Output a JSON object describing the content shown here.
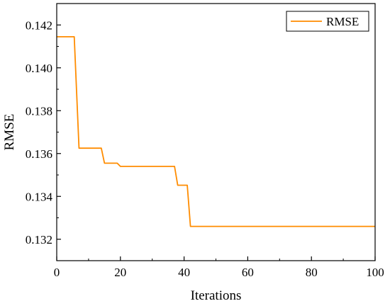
{
  "chart_data": {
    "type": "line",
    "title": "",
    "xlabel": "Iterations",
    "ylabel": "RMSE",
    "xlim": [
      0,
      100
    ],
    "ylim": [
      0.131,
      0.143
    ],
    "xticks": [
      0,
      20,
      40,
      60,
      80,
      100
    ],
    "xtick_labels": [
      "0",
      "20",
      "40",
      "60",
      "80",
      "100"
    ],
    "yticks": [
      0.132,
      0.134,
      0.136,
      0.138,
      0.14,
      0.142
    ],
    "ytick_labels": [
      "0.132",
      "0.134",
      "0.136",
      "0.138",
      "0.140",
      "0.142"
    ],
    "grid": false,
    "legend_position": "top-right",
    "series": [
      {
        "name": "RMSE",
        "color": "#ff8c00",
        "x": [
          0,
          5.5,
          7,
          14,
          15,
          19,
          20,
          37,
          38,
          41,
          42,
          100
        ],
        "y": [
          0.14145,
          0.14145,
          0.13625,
          0.13625,
          0.13555,
          0.13555,
          0.1354,
          0.1354,
          0.13452,
          0.13452,
          0.1326,
          0.1326
        ]
      }
    ]
  }
}
